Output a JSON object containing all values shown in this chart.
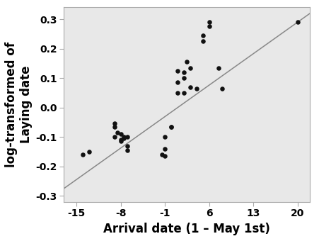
{
  "x_points": [
    -14,
    -13,
    -9,
    -9,
    -9,
    -8.5,
    -8,
    -8,
    -8,
    -7.5,
    -7.5,
    -7,
    -7,
    -7,
    -1.5,
    -1,
    -1,
    -1,
    0,
    0,
    1,
    1,
    1,
    2,
    2,
    2,
    2.5,
    3,
    3,
    4,
    5,
    5,
    6,
    6,
    7.5,
    8,
    20
  ],
  "y_points": [
    -0.16,
    -0.15,
    -0.065,
    -0.055,
    -0.1,
    -0.085,
    -0.11,
    -0.115,
    -0.09,
    -0.105,
    -0.1,
    -0.145,
    -0.13,
    -0.1,
    -0.16,
    -0.14,
    -0.1,
    -0.165,
    -0.065,
    -0.065,
    0.05,
    0.085,
    0.125,
    0.05,
    0.1,
    0.12,
    0.155,
    0.07,
    0.135,
    0.065,
    0.245,
    0.225,
    0.275,
    0.29,
    0.135,
    0.065,
    0.29
  ],
  "line_x": [
    -17,
    22
  ],
  "line_y": [
    -0.275,
    0.32
  ],
  "xlabel": "Arrival date (1 – May 1st)",
  "ylabel": "log-transformed of\nLaying date",
  "xlim": [
    -17,
    22
  ],
  "ylim": [
    -0.32,
    0.34
  ],
  "xticks": [
    -15,
    -8,
    -1,
    6,
    13,
    20
  ],
  "yticks": [
    -0.3,
    -0.2,
    -0.1,
    0.0,
    0.1,
    0.2,
    0.3
  ],
  "bg_color": "#e8e8e8",
  "dot_color": "#111111",
  "line_color": "#888888",
  "dot_size": 22,
  "xlabel_fontsize": 12,
  "ylabel_fontsize": 12,
  "tick_fontsize": 10,
  "fig_width": 4.52,
  "fig_height": 3.47,
  "dpi": 100
}
